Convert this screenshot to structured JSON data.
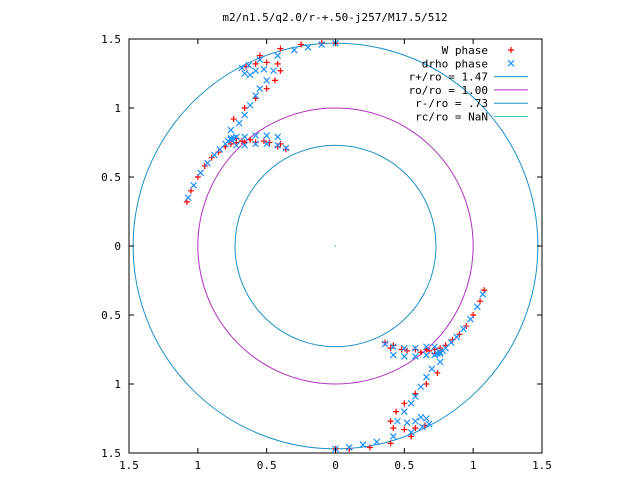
{
  "chart_data": {
    "type": "scatter",
    "title": "m2/n1.5/q2.0/r-+.50-j257/M17.5/512",
    "xlim": [
      -1.5,
      1.5
    ],
    "ylim": [
      -1.5,
      1.5
    ],
    "x_ticks": [
      {
        "v": -1.5,
        "label": "1.5"
      },
      {
        "v": -1.0,
        "label": "1"
      },
      {
        "v": -0.5,
        "label": "0.5"
      },
      {
        "v": 0.0,
        "label": "0"
      },
      {
        "v": 0.5,
        "label": "0.5"
      },
      {
        "v": 1.0,
        "label": "1"
      },
      {
        "v": 1.5,
        "label": "1.5"
      }
    ],
    "y_ticks": [
      {
        "v": 1.5,
        "label": "1.5"
      },
      {
        "v": 1.0,
        "label": "1"
      },
      {
        "v": 0.5,
        "label": "0.5"
      },
      {
        "v": 0.0,
        "label": "0"
      },
      {
        "v": -0.5,
        "label": "0.5"
      },
      {
        "v": -1.0,
        "label": "1"
      },
      {
        "v": -1.5,
        "label": "1.5"
      }
    ],
    "grid": false,
    "legend_position": "top-right",
    "series": [
      {
        "name": "W phase",
        "marker": "plus",
        "color": "#ff0000",
        "x": [
          -1.08,
          -1.05,
          -1.0,
          -0.95,
          -0.9,
          -0.85,
          -0.8,
          -0.76,
          -0.72,
          -0.68,
          -0.62,
          -0.52,
          -0.42,
          -0.36,
          -0.4,
          -0.48,
          -0.58,
          -0.66,
          -0.72,
          -0.74,
          -0.66,
          -0.58,
          -0.5,
          -0.44,
          -0.4,
          -0.42,
          -0.5,
          -0.58,
          -0.65,
          -0.55,
          -0.4,
          -0.25,
          -0.1,
          0.0,
          1.08,
          1.05,
          1.0,
          0.95,
          0.9,
          0.85,
          0.8,
          0.76,
          0.72,
          0.68,
          0.62,
          0.52,
          0.42,
          0.36,
          0.4,
          0.48,
          0.58,
          0.66,
          0.72,
          0.74,
          0.66,
          0.58,
          0.5,
          0.44,
          0.4,
          0.42,
          0.5,
          0.58,
          0.65,
          0.55,
          0.4,
          0.25,
          0.1,
          0.0
        ],
        "y": [
          0.32,
          0.4,
          0.5,
          0.58,
          0.64,
          0.68,
          0.72,
          0.74,
          0.75,
          0.76,
          0.77,
          0.76,
          0.72,
          0.7,
          0.74,
          0.75,
          0.75,
          0.75,
          0.78,
          0.92,
          1.0,
          1.07,
          1.14,
          1.2,
          1.27,
          1.32,
          1.33,
          1.32,
          1.3,
          1.38,
          1.43,
          1.46,
          1.47,
          1.47,
          -0.32,
          -0.4,
          -0.5,
          -0.58,
          -0.64,
          -0.68,
          -0.72,
          -0.74,
          -0.75,
          -0.76,
          -0.77,
          -0.76,
          -0.72,
          -0.7,
          -0.74,
          -0.75,
          -0.75,
          -0.75,
          -0.78,
          -0.92,
          -1.0,
          -1.07,
          -1.14,
          -1.2,
          -1.27,
          -1.32,
          -1.33,
          -1.32,
          -1.3,
          -1.38,
          -1.43,
          -1.46,
          -1.47,
          -1.47
        ]
      },
      {
        "name": "drho phase",
        "marker": "cross",
        "color": "#1e90ff",
        "x": [
          -1.07,
          -1.03,
          -0.98,
          -0.93,
          -0.88,
          -0.84,
          -0.8,
          -0.78,
          -0.76,
          -0.74,
          -0.72,
          -0.66,
          -0.58,
          -0.5,
          -0.42,
          -0.36,
          -0.42,
          -0.5,
          -0.58,
          -0.66,
          -0.72,
          -0.76,
          -0.76,
          -0.7,
          -0.66,
          -0.62,
          -0.58,
          -0.55,
          -0.5,
          -0.45,
          -0.52,
          -0.58,
          -0.62,
          -0.66,
          -0.68,
          -0.63,
          -0.55,
          -0.42,
          -0.3,
          -0.2,
          -0.1,
          0.0,
          1.07,
          1.03,
          0.98,
          0.93,
          0.88,
          0.84,
          0.8,
          0.78,
          0.76,
          0.74,
          0.72,
          0.66,
          0.58,
          0.5,
          0.42,
          0.36,
          0.42,
          0.5,
          0.58,
          0.66,
          0.72,
          0.76,
          0.76,
          0.7,
          0.66,
          0.62,
          0.58,
          0.55,
          0.5,
          0.45,
          0.52,
          0.58,
          0.62,
          0.66,
          0.68,
          0.63,
          0.55,
          0.42,
          0.3,
          0.2,
          0.1,
          0.0
        ],
        "y": [
          0.35,
          0.44,
          0.53,
          0.6,
          0.66,
          0.7,
          0.74,
          0.76,
          0.77,
          0.78,
          0.79,
          0.79,
          0.8,
          0.8,
          0.79,
          0.71,
          0.73,
          0.74,
          0.74,
          0.73,
          0.73,
          0.78,
          0.84,
          0.89,
          0.95,
          1.02,
          1.09,
          1.14,
          1.2,
          1.27,
          1.28,
          1.27,
          1.24,
          1.25,
          1.29,
          1.31,
          1.35,
          1.38,
          1.42,
          1.44,
          1.46,
          1.47,
          -0.35,
          -0.44,
          -0.53,
          -0.6,
          -0.66,
          -0.7,
          -0.74,
          -0.76,
          -0.77,
          -0.78,
          -0.79,
          -0.79,
          -0.8,
          -0.8,
          -0.79,
          -0.71,
          -0.73,
          -0.74,
          -0.74,
          -0.73,
          -0.73,
          -0.78,
          -0.84,
          -0.89,
          -0.95,
          -1.02,
          -1.09,
          -1.14,
          -1.2,
          -1.27,
          -1.28,
          -1.27,
          -1.24,
          -1.25,
          -1.29,
          -1.31,
          -1.35,
          -1.38,
          -1.42,
          -1.44,
          -1.46,
          -1.47
        ]
      }
    ],
    "circles": [
      {
        "label": "r+/ro = 1.47",
        "r": 1.47,
        "color": "#1e8fc8"
      },
      {
        "label": "ro/ro = 1.00",
        "r": 1.0,
        "color": "#b030c0"
      },
      {
        "label": "r-/ro = .73",
        "r": 0.73,
        "color": "#1e8fc8"
      },
      {
        "label": "rc/ro = NaN",
        "r": null,
        "color": "#33c8c8"
      }
    ]
  }
}
